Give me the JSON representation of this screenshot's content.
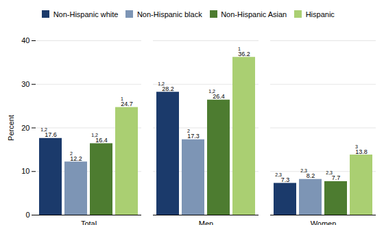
{
  "chart_data": {
    "type": "bar",
    "categories": [
      "Total",
      "Men",
      "Women"
    ],
    "series": [
      {
        "name": "Non-Hispanic white",
        "color": "#1b3a6b",
        "values": [
          17.6,
          28.2,
          7.3
        ],
        "superscripts": [
          "1,2",
          "1,2",
          "2,3"
        ]
      },
      {
        "name": "Non-Hispanic black",
        "color": "#7d95b5",
        "values": [
          12.2,
          17.3,
          8.2
        ],
        "superscripts": [
          "2",
          "2",
          "2,3"
        ]
      },
      {
        "name": "Non-Hispanic Asian",
        "color": "#4d7c30",
        "values": [
          16.4,
          26.4,
          7.7
        ],
        "superscripts": [
          "1,2",
          "1,2",
          "2,3"
        ]
      },
      {
        "name": "Hispanic",
        "color": "#aacf72",
        "values": [
          24.7,
          36.2,
          13.8
        ],
        "superscripts": [
          "1",
          "1",
          "3"
        ]
      }
    ],
    "ylabel": "Percent",
    "ylim": [
      0,
      40
    ],
    "yticks": [
      0,
      10,
      20,
      30,
      40
    ],
    "grid": true,
    "legend": "top",
    "data_labels": true
  }
}
